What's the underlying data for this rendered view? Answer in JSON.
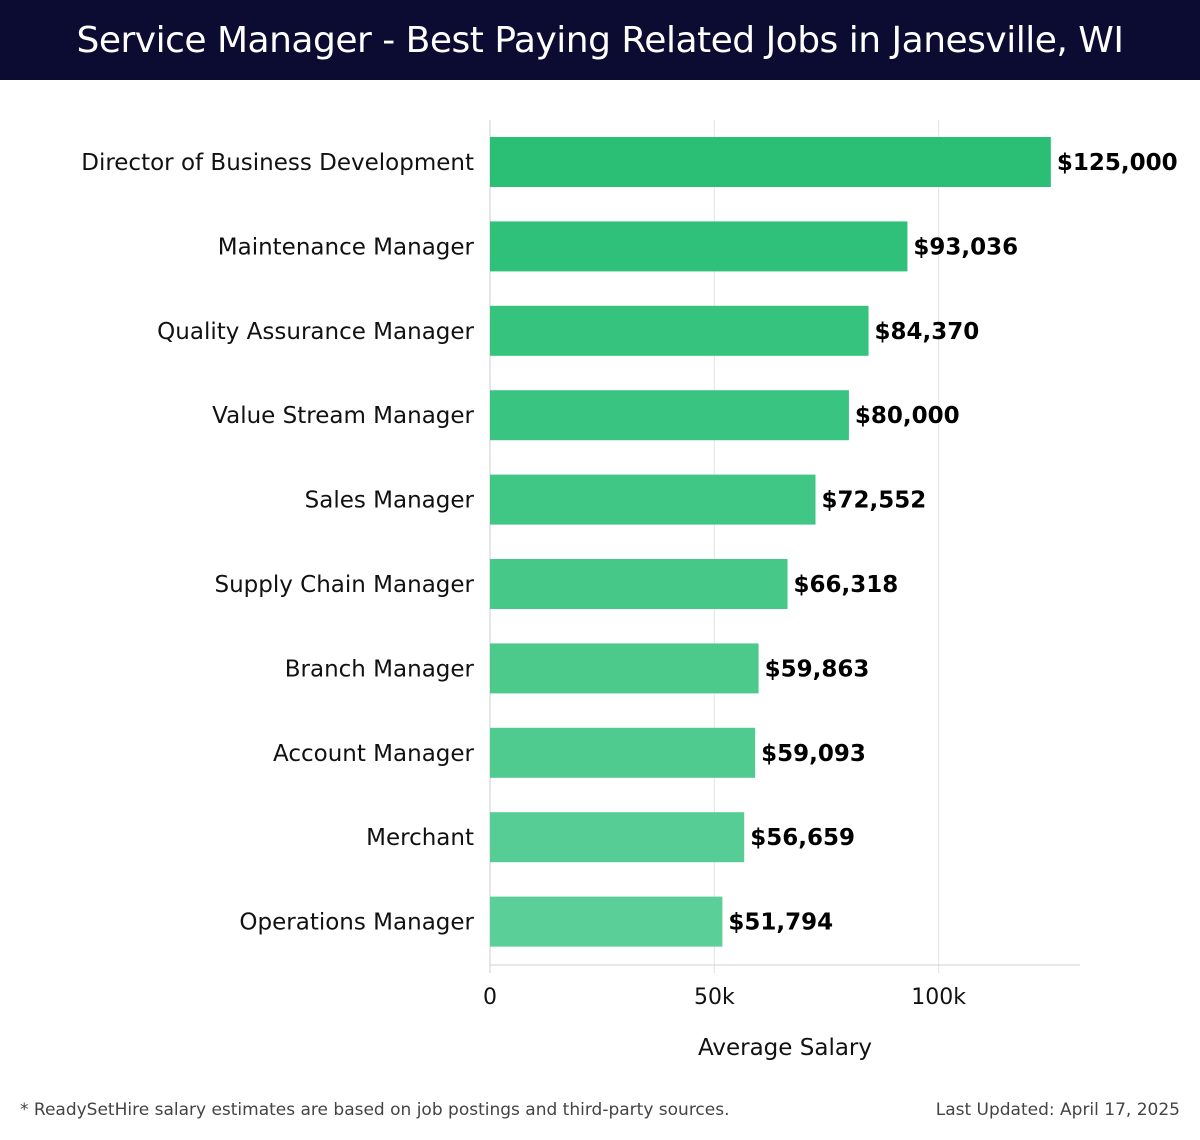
{
  "header": {
    "title": "Service Manager - Best Paying Related Jobs in Janesville, WI"
  },
  "chart_data": {
    "type": "bar",
    "orientation": "horizontal",
    "title": "Service Manager - Best Paying Related Jobs in Janesville, WI",
    "xlabel": "Average Salary",
    "ylabel": "",
    "categories": [
      "Director of Business Development",
      "Maintenance Manager",
      "Quality Assurance Manager",
      "Value Stream Manager",
      "Sales Manager",
      "Supply Chain Manager",
      "Branch Manager",
      "Account Manager",
      "Merchant",
      "Operations Manager"
    ],
    "values": [
      125000,
      93036,
      84370,
      80000,
      72552,
      66318,
      59863,
      59093,
      56659,
      51794
    ],
    "value_labels": [
      "$125,000",
      "$93,036",
      "$84,370",
      "$80,000",
      "$72,552",
      "$66,318",
      "$59,863",
      "$59,093",
      "$56,659",
      "$51,794"
    ],
    "xticks": [
      0,
      50000,
      100000
    ],
    "xtick_labels": [
      "0",
      "50k",
      "100k"
    ],
    "xlim": [
      0,
      131500
    ],
    "grid": true,
    "bar_color_start": "#2abf75",
    "bar_color_end": "#5bcf98"
  },
  "footer": {
    "note": "* ReadySetHire salary estimates are based on job postings and third-party sources.",
    "updated": "Last Updated: April 17, 2025"
  }
}
